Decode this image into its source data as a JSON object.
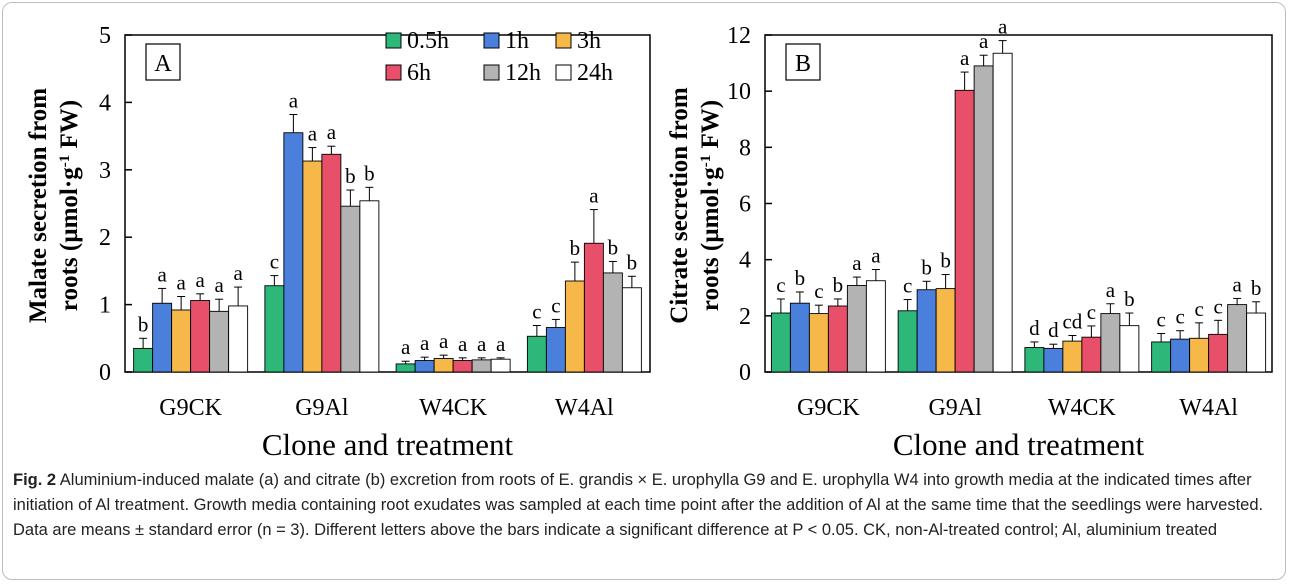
{
  "figure": {
    "caption_label": "Fig. 2",
    "caption_text": "Aluminium-induced malate (a) and citrate (b) excretion from roots of E. grandis × E. urophylla G9 and E. urophylla W4 into growth media at the indicated times after initiation of Al treatment. Growth media containing root exudates was sampled at each time point after the addition of Al at the same time that the seedlings were harvested. Data are means ± standard error (n = 3). Different letters above the bars indicate a significant difference at P < 0.05. CK, non-Al-treated control; Al, aluminium treated"
  },
  "colors": {
    "0.5h": "#2db87a",
    "1h": "#4a7fdc",
    "3h": "#f7b84a",
    "6h": "#e8506a",
    "12h": "#b3b3b3",
    "24h": "#ffffff"
  },
  "chart_data": [
    {
      "panel": "A",
      "type": "bar",
      "xlabel": "Clone and treatment",
      "ylabel": "Malate secretion from roots (µmol·g⁻¹ FW)",
      "ylim": [
        0,
        5
      ],
      "yticks": [
        0,
        1,
        2,
        3,
        4,
        5
      ],
      "categories": [
        "G9CK",
        "G9Al",
        "W4CK",
        "W4Al"
      ],
      "legend": {
        "placement": "top-right"
      },
      "series": [
        {
          "name": "0.5h",
          "values": [
            0.35,
            1.28,
            0.12,
            0.53
          ],
          "errors": [
            0.15,
            0.15,
            0.04,
            0.16
          ],
          "letters": [
            "b",
            "c",
            "a",
            "c"
          ]
        },
        {
          "name": "1h",
          "values": [
            1.02,
            3.55,
            0.17,
            0.66
          ],
          "errors": [
            0.22,
            0.27,
            0.05,
            0.12
          ],
          "letters": [
            "a",
            "a",
            "a",
            "c"
          ]
        },
        {
          "name": "3h",
          "values": [
            0.92,
            3.13,
            0.2,
            1.35
          ],
          "errors": [
            0.2,
            0.2,
            0.05,
            0.28
          ],
          "letters": [
            "a",
            "a",
            "a",
            "b"
          ]
        },
        {
          "name": "6h",
          "values": [
            1.06,
            3.23,
            0.17,
            1.91
          ],
          "errors": [
            0.1,
            0.12,
            0.04,
            0.5
          ],
          "letters": [
            "a",
            "a",
            "a",
            "a"
          ]
        },
        {
          "name": "12h",
          "values": [
            0.9,
            2.46,
            0.18,
            1.47
          ],
          "errors": [
            0.18,
            0.24,
            0.03,
            0.17
          ],
          "letters": [
            "a",
            "b",
            "a",
            "b"
          ]
        },
        {
          "name": "24h",
          "values": [
            0.98,
            2.54,
            0.19,
            1.25
          ],
          "errors": [
            0.28,
            0.2,
            0.02,
            0.17
          ],
          "letters": [
            "a",
            "b",
            "a",
            "b"
          ]
        }
      ]
    },
    {
      "panel": "B",
      "type": "bar",
      "xlabel": "Clone and treatment",
      "ylabel": "Citrate secretion from roots (µmol·g⁻¹ FW)",
      "ylim": [
        0,
        12
      ],
      "yticks": [
        0,
        2,
        4,
        6,
        8,
        10,
        12
      ],
      "categories": [
        "G9CK",
        "G9Al",
        "W4CK",
        "W4Al"
      ],
      "series": [
        {
          "name": "0.5h",
          "values": [
            2.1,
            2.18,
            0.87,
            1.07
          ],
          "errors": [
            0.5,
            0.4,
            0.2,
            0.3
          ],
          "letters": [
            "c",
            "c",
            "d",
            "c"
          ]
        },
        {
          "name": "1h",
          "values": [
            2.45,
            2.93,
            0.84,
            1.17
          ],
          "errors": [
            0.4,
            0.3,
            0.15,
            0.3
          ],
          "letters": [
            "b",
            "b",
            "d",
            "c"
          ]
        },
        {
          "name": "3h",
          "values": [
            2.08,
            2.97,
            1.1,
            1.2
          ],
          "errors": [
            0.3,
            0.5,
            0.2,
            0.55
          ],
          "letters": [
            "c",
            "b",
            "cd",
            "c"
          ]
        },
        {
          "name": "6h",
          "values": [
            2.35,
            10.03,
            1.24,
            1.34
          ],
          "errors": [
            0.25,
            0.65,
            0.4,
            0.5
          ],
          "letters": [
            "b",
            "a",
            "c",
            "c"
          ]
        },
        {
          "name": "12h",
          "values": [
            3.08,
            10.9,
            2.08,
            2.4
          ],
          "errors": [
            0.3,
            0.38,
            0.35,
            0.22
          ],
          "letters": [
            "a",
            "a",
            "a",
            "a"
          ]
        },
        {
          "name": "24h",
          "values": [
            3.25,
            11.35,
            1.65,
            2.1
          ],
          "errors": [
            0.4,
            0.45,
            0.45,
            0.4
          ],
          "letters": [
            "a",
            "a",
            "b",
            "b"
          ]
        }
      ]
    }
  ]
}
